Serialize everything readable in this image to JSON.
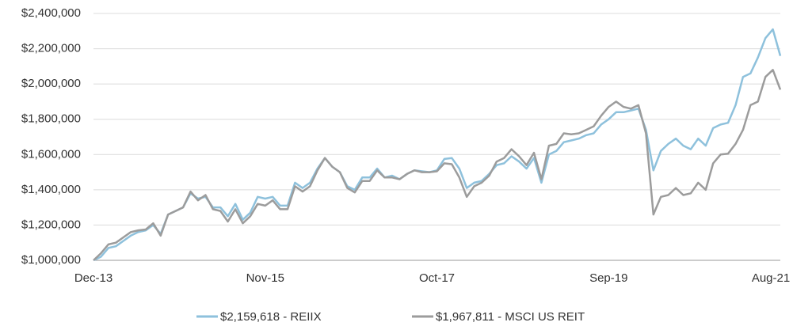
{
  "chart_data": {
    "type": "line",
    "categories": [
      "Dec-13",
      null,
      null,
      null,
      null,
      null,
      null,
      null,
      null,
      null,
      null,
      null,
      null,
      null,
      null,
      null,
      null,
      null,
      null,
      null,
      null,
      null,
      null,
      "Nov-15",
      null,
      null,
      null,
      null,
      null,
      null,
      null,
      null,
      null,
      null,
      null,
      null,
      null,
      null,
      null,
      null,
      null,
      null,
      null,
      null,
      null,
      null,
      "Oct-17",
      null,
      null,
      null,
      null,
      null,
      null,
      null,
      null,
      null,
      null,
      null,
      null,
      null,
      null,
      null,
      null,
      null,
      null,
      null,
      null,
      null,
      null,
      "Sep-19",
      null,
      null,
      null,
      null,
      null,
      null,
      null,
      null,
      null,
      null,
      null,
      null,
      null,
      null,
      null,
      null,
      null,
      null,
      null,
      null,
      null,
      null,
      "Aug-21"
    ],
    "series": [
      {
        "name": "$2,159,618 - REIIX",
        "color": "#8ec1dc",
        "values": [
          1000000,
          1020000,
          1070000,
          1080000,
          1110000,
          1140000,
          1160000,
          1170000,
          1200000,
          1150000,
          1260000,
          1280000,
          1300000,
          1380000,
          1350000,
          1360000,
          1300000,
          1300000,
          1250000,
          1320000,
          1230000,
          1270000,
          1360000,
          1350000,
          1360000,
          1310000,
          1310000,
          1440000,
          1410000,
          1440000,
          1520000,
          1580000,
          1530000,
          1500000,
          1420000,
          1400000,
          1470000,
          1470000,
          1520000,
          1470000,
          1480000,
          1460000,
          1490000,
          1510000,
          1505000,
          1500000,
          1510000,
          1575000,
          1580000,
          1520000,
          1410000,
          1440000,
          1450000,
          1490000,
          1540000,
          1550000,
          1590000,
          1560000,
          1520000,
          1580000,
          1440000,
          1600000,
          1620000,
          1670000,
          1680000,
          1690000,
          1710000,
          1720000,
          1770000,
          1800000,
          1840000,
          1840000,
          1850000,
          1860000,
          1740000,
          1510000,
          1620000,
          1660000,
          1690000,
          1650000,
          1630000,
          1690000,
          1650000,
          1750000,
          1770000,
          1780000,
          1880000,
          2040000,
          2060000,
          2150000,
          2260000,
          2310000,
          2159618
        ]
      },
      {
        "name": "$1,967,811 - MSCI US REIT",
        "color": "#9c9c9c",
        "values": [
          1000000,
          1040000,
          1090000,
          1100000,
          1130000,
          1160000,
          1170000,
          1175000,
          1210000,
          1140000,
          1260000,
          1280000,
          1300000,
          1390000,
          1340000,
          1370000,
          1290000,
          1280000,
          1220000,
          1290000,
          1210000,
          1250000,
          1320000,
          1310000,
          1340000,
          1290000,
          1290000,
          1420000,
          1390000,
          1420000,
          1510000,
          1580000,
          1530000,
          1500000,
          1410000,
          1385000,
          1450000,
          1450000,
          1510000,
          1470000,
          1470000,
          1460000,
          1490000,
          1510000,
          1500000,
          1500000,
          1505000,
          1550000,
          1545000,
          1470000,
          1360000,
          1420000,
          1440000,
          1480000,
          1560000,
          1580000,
          1630000,
          1590000,
          1540000,
          1610000,
          1460000,
          1650000,
          1660000,
          1720000,
          1715000,
          1720000,
          1740000,
          1760000,
          1820000,
          1870000,
          1900000,
          1870000,
          1860000,
          1880000,
          1720000,
          1260000,
          1360000,
          1370000,
          1410000,
          1370000,
          1380000,
          1440000,
          1400000,
          1550000,
          1600000,
          1605000,
          1660000,
          1740000,
          1880000,
          1900000,
          2040000,
          2080000,
          1967811
        ]
      }
    ],
    "ylim": [
      1000000,
      2400000
    ],
    "yticks": [
      {
        "value": 1000000,
        "label": "$1,000,000"
      },
      {
        "value": 1200000,
        "label": "$1,200,000"
      },
      {
        "value": 1400000,
        "label": "$1,400,000"
      },
      {
        "value": 1600000,
        "label": "$1,600,000"
      },
      {
        "value": 1800000,
        "label": "$1,800,000"
      },
      {
        "value": 2000000,
        "label": "$2,000,000"
      },
      {
        "value": 2200000,
        "label": "$2,200,000"
      },
      {
        "value": 2400000,
        "label": "$2,400,000"
      }
    ],
    "grid": true,
    "legend": "bottom"
  }
}
